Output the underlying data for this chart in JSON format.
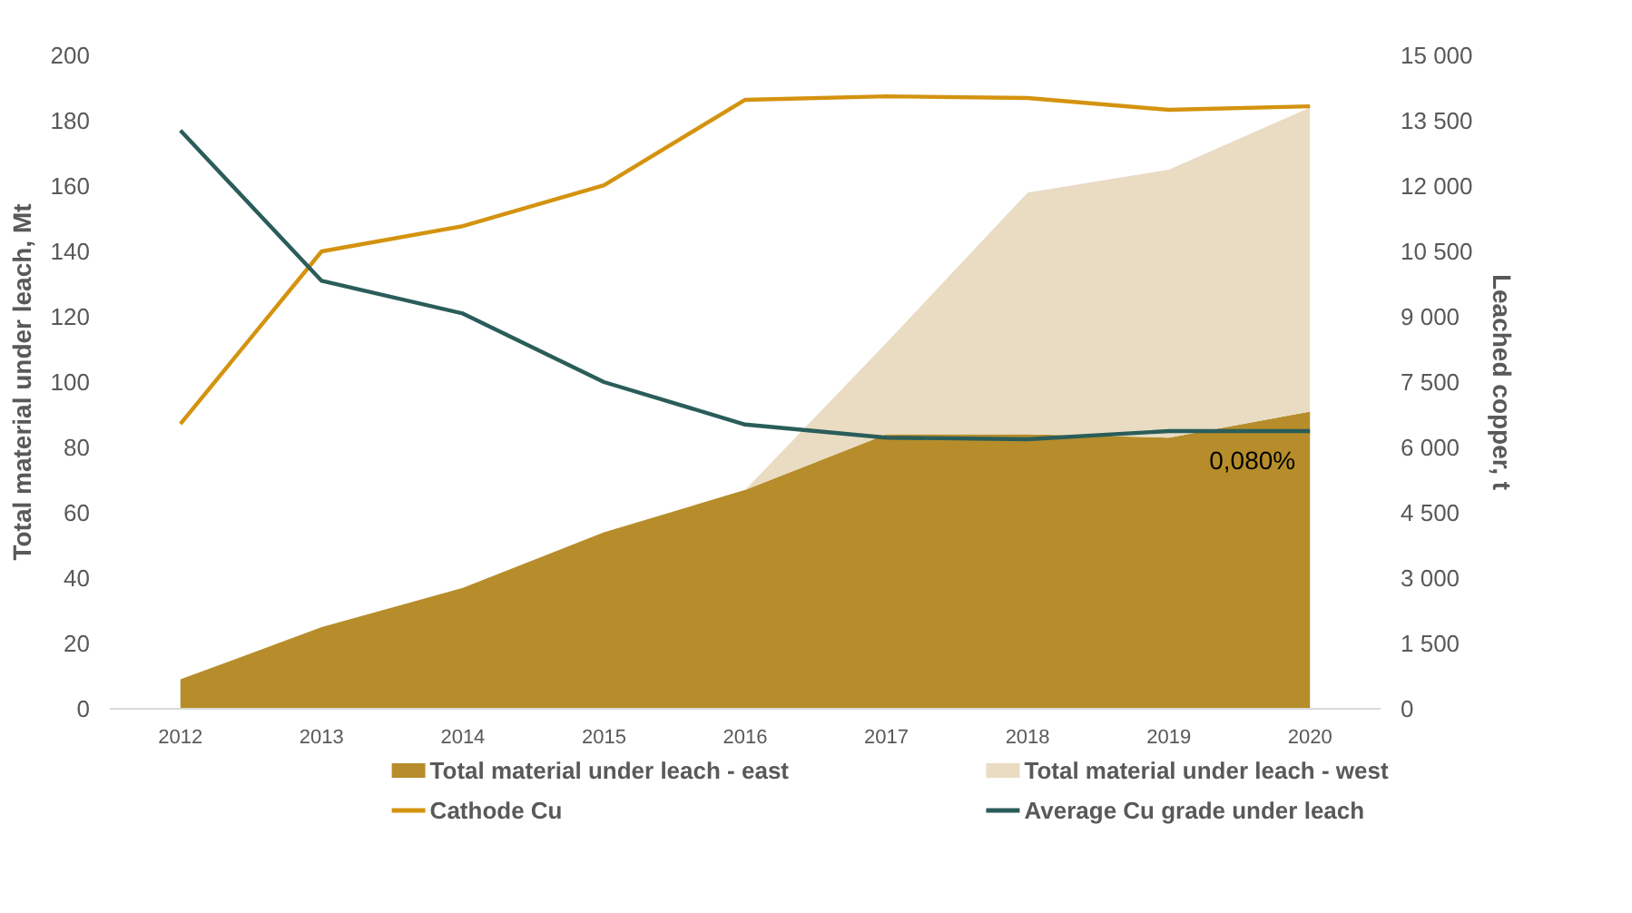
{
  "chart_data": {
    "type": "area",
    "stacked": true,
    "categories": [
      "2012",
      "2013",
      "2014",
      "2015",
      "2016",
      "2017",
      "2018",
      "2019",
      "2020"
    ],
    "series": [
      {
        "name": "Total material under leach - east",
        "color": "#b68d2a",
        "values": [
          9,
          25,
          37,
          54,
          67,
          84,
          84,
          83,
          91
        ]
      },
      {
        "name": "Total material under leach - west",
        "color": "#e9dcc3",
        "values": [
          0,
          0,
          0,
          0,
          0,
          28,
          74,
          82,
          93
        ]
      },
      {
        "name": "Cathode Cu",
        "type": "line",
        "axis": "y2",
        "color": "#d4930f",
        "values": [
          6540,
          10500,
          11080,
          12020,
          13980,
          14060,
          14020,
          13750,
          13830
        ]
      },
      {
        "name": "Average Cu grade under leach",
        "type": "line",
        "color": "#2a5d5a",
        "values": [
          177,
          131,
          121,
          100,
          87,
          83,
          82.5,
          85,
          85
        ]
      }
    ],
    "ylabel": "Total material under leach, Mt",
    "y2label": "Leached copper, t",
    "ylim": [
      0,
      200
    ],
    "yticks": [
      0,
      20,
      40,
      60,
      80,
      100,
      120,
      140,
      160,
      180,
      200
    ],
    "y2lim": [
      0,
      15000
    ],
    "y2ticks": [
      0,
      {
        "value": 1500,
        "label": "1 500"
      },
      {
        "value": 3000,
        "label": "3 000"
      },
      {
        "value": 4500,
        "label": "4 500"
      },
      {
        "value": 6000,
        "label": "6 000"
      },
      {
        "value": 7500,
        "label": "7 500"
      },
      {
        "value": 9000,
        "label": "9 000"
      },
      {
        "value": 10500,
        "label": "10 500"
      },
      {
        "value": 12000,
        "label": "12 000"
      },
      {
        "value": 13500,
        "label": "13 500"
      },
      {
        "value": 15000,
        "label": "15 000"
      }
    ],
    "annotations": [
      {
        "text": "0,080%",
        "x": "2020",
        "y": 85
      }
    ],
    "grid": false,
    "legend": "bottom",
    "marker": "none",
    "line_style": "solid"
  }
}
